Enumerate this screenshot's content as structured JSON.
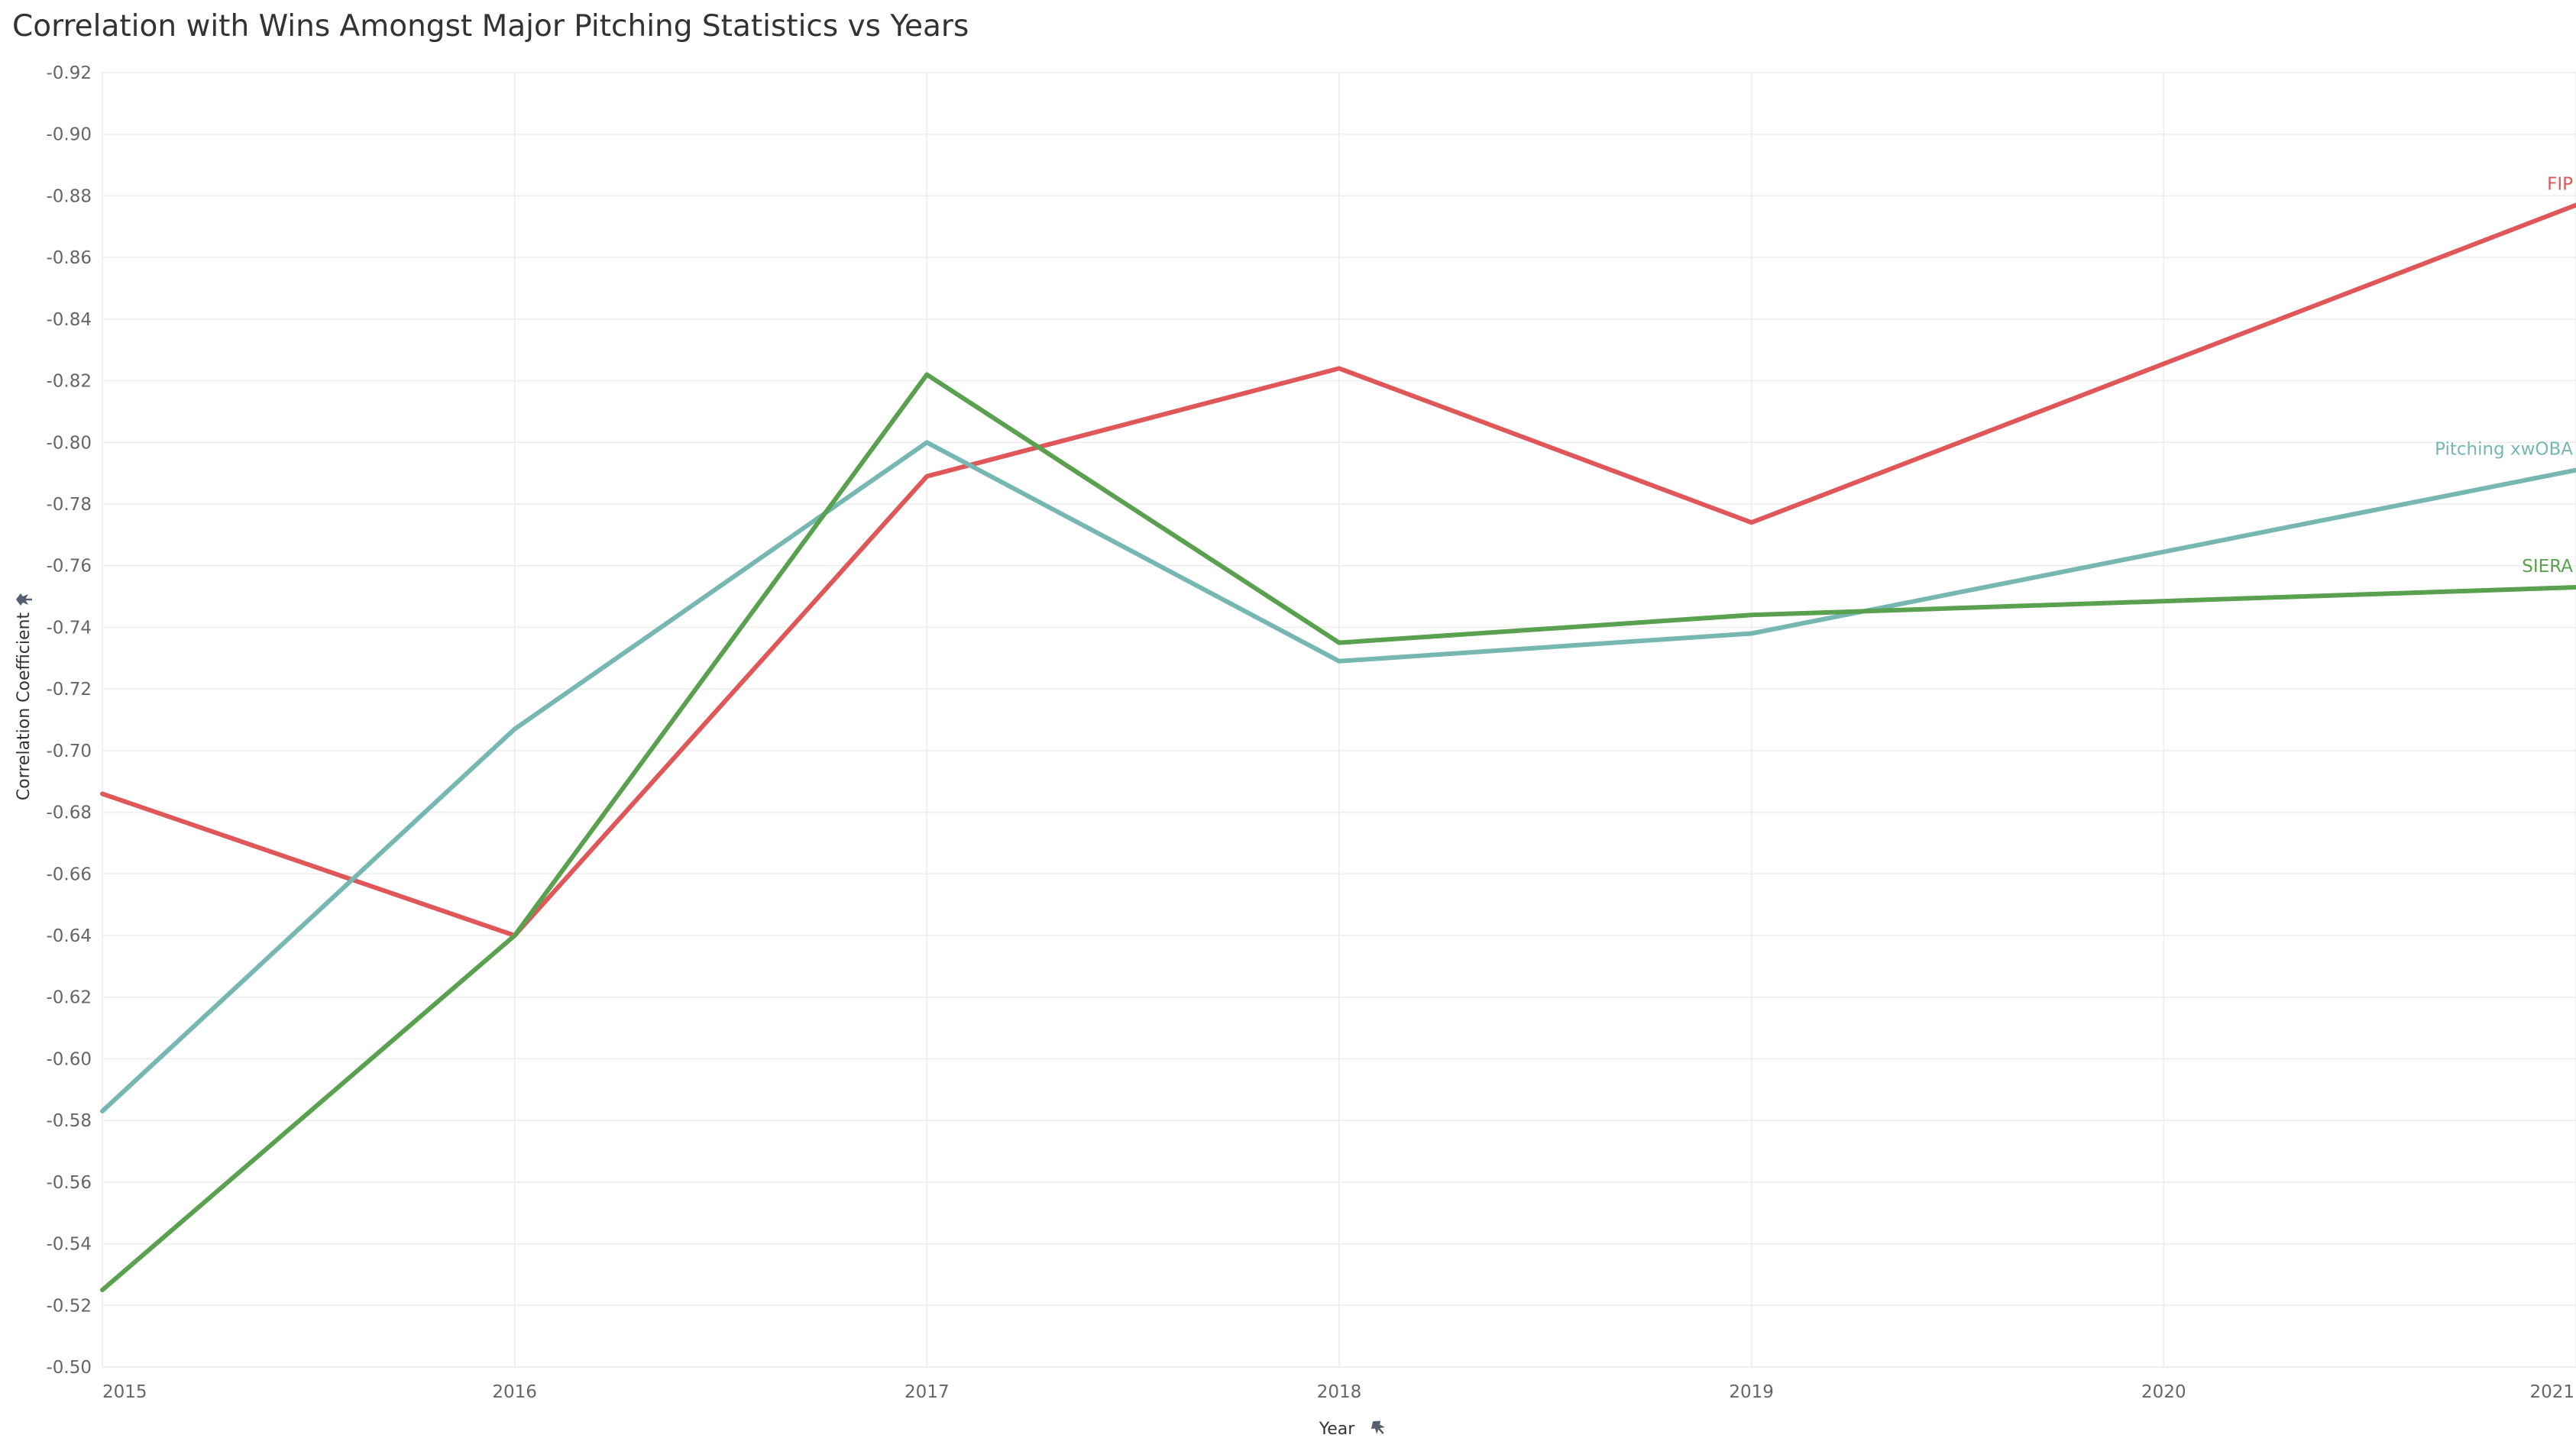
{
  "chart_data": {
    "type": "line",
    "title": "Correlation with Wins Amongst Major Pitching Statistics vs Years",
    "xlabel": "Year",
    "ylabel": "Correlation Coefficient",
    "x": [
      "2015",
      "2016",
      "2017",
      "2018",
      "2019",
      "2020",
      "2021"
    ],
    "ylim": [
      -0.5,
      -0.92
    ],
    "yticks": [
      "-0.50",
      "-0.52",
      "-0.54",
      "-0.56",
      "-0.58",
      "-0.60",
      "-0.62",
      "-0.64",
      "-0.66",
      "-0.68",
      "-0.70",
      "-0.72",
      "-0.74",
      "-0.76",
      "-0.78",
      "-0.80",
      "-0.82",
      "-0.84",
      "-0.86",
      "-0.88",
      "-0.90",
      "-0.92"
    ],
    "y_reversed": true,
    "grid": true,
    "legend": "labels at line ends",
    "series": [
      {
        "name": "FIP",
        "color": "#e05759",
        "x": [
          2015,
          2016,
          2017,
          2018,
          2019,
          2021
        ],
        "values": [
          -0.686,
          -0.64,
          -0.789,
          -0.824,
          -0.774,
          -0.877
        ]
      },
      {
        "name": "Pitching xwOBA",
        "color": "#76b7b2",
        "x": [
          2015,
          2016,
          2017,
          2018,
          2019,
          2021
        ],
        "values": [
          -0.583,
          -0.707,
          -0.8,
          -0.729,
          -0.738,
          -0.791
        ]
      },
      {
        "name": "SIERA",
        "color": "#59a14f",
        "x": [
          2015,
          2016,
          2017,
          2018,
          2019,
          2021
        ],
        "values": [
          -0.525,
          -0.64,
          -0.822,
          -0.735,
          -0.744,
          -0.753
        ]
      }
    ]
  },
  "icons": {
    "pin": "pin-icon"
  }
}
